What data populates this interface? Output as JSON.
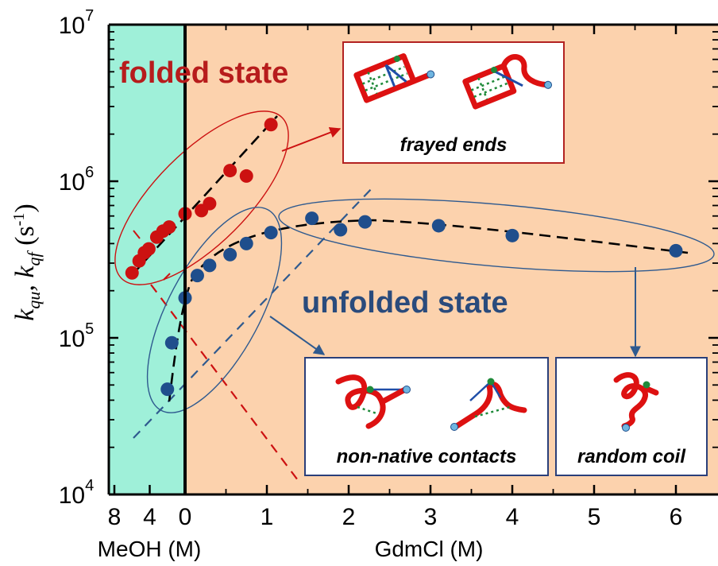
{
  "chart_data": {
    "type": "scatter",
    "y_scale": "log",
    "ylim": [
      10000,
      10000000
    ],
    "y_ticks": [
      {
        "base": "10",
        "exp": "4"
      },
      {
        "base": "10",
        "exp": "5"
      },
      {
        "base": "10",
        "exp": "6"
      },
      {
        "base": "10",
        "exp": "7"
      }
    ],
    "y_label": {
      "k": "k",
      "sub1": "qu",
      "comma": ", ",
      "k2": "k",
      "sub2": "qf",
      "unit_open": " (s",
      "unit_exp": "-1",
      "unit_close": ")"
    },
    "meoh_axis": {
      "label": "MeOH (M)",
      "ticks": [
        "8",
        "4",
        "0"
      ]
    },
    "gdm_axis": {
      "label": "GdmCl (M)",
      "ticks": [
        "0",
        "1",
        "2",
        "3",
        "4",
        "5",
        "6"
      ],
      "range": [
        0,
        6.5
      ]
    },
    "meoh_range": [
      -9,
      0
    ],
    "colors": {
      "meoh_region": "#9ff0d9",
      "gdm_region": "#fcd2ad",
      "folded": "#cc1111",
      "unfolded": "#1f4e8c",
      "folded_text": "#b71c1c",
      "unfolded_text": "#2a4b7c"
    },
    "series": [
      {
        "name": "folded state",
        "color": "#cc1111",
        "points_meoh": [
          [
            -6.0,
            260000
          ],
          [
            -5.2,
            310000
          ],
          [
            -4.6,
            350000
          ],
          [
            -4.1,
            370000
          ],
          [
            -3.2,
            440000
          ],
          [
            -2.5,
            480000
          ],
          [
            -1.8,
            510000
          ]
        ],
        "points_gdm": [
          [
            0.0,
            620000
          ],
          [
            0.2,
            650000
          ],
          [
            0.3,
            720000
          ],
          [
            0.55,
            1170000
          ],
          [
            0.75,
            1080000
          ],
          [
            1.05,
            2300000
          ]
        ]
      },
      {
        "name": "unfolded state",
        "color": "#1f4e8c",
        "points_meoh": [
          [
            -2.0,
            47000
          ],
          [
            -1.5,
            93000
          ]
        ],
        "points_gdm": [
          [
            0.0,
            180000
          ],
          [
            0.15,
            250000
          ],
          [
            0.3,
            290000
          ],
          [
            0.55,
            340000
          ],
          [
            0.75,
            400000
          ],
          [
            1.05,
            470000
          ],
          [
            1.55,
            580000
          ],
          [
            1.9,
            490000
          ],
          [
            2.2,
            550000
          ],
          [
            3.1,
            520000
          ],
          [
            4.0,
            450000
          ],
          [
            6.0,
            360000
          ]
        ]
      }
    ],
    "annotations": {
      "folded": "folded state",
      "unfolded": "unfolded state",
      "frayed": "frayed ends",
      "nonnative": "non-native contacts",
      "random": "random coil"
    }
  }
}
